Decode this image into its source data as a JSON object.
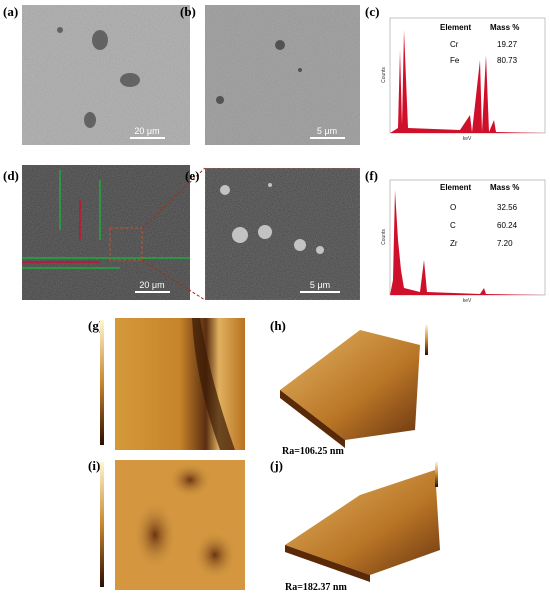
{
  "panels": {
    "a": {
      "label": "(a)",
      "scale_bar": "20 μm"
    },
    "b": {
      "label": "(b)",
      "scale_bar": "5 μm"
    },
    "c": {
      "label": "(c)",
      "y_axis": "Counts",
      "x_axis": "keV",
      "table": {
        "header": [
          "Element",
          "Mass %"
        ],
        "rows": [
          [
            "Cr",
            "19.27"
          ],
          [
            "Fe",
            "80.73"
          ]
        ]
      }
    },
    "d": {
      "label": "(d)",
      "scale_bar": "20 μm"
    },
    "e": {
      "label": "(e)",
      "scale_bar": "5 μm"
    },
    "f": {
      "label": "(f)",
      "y_axis": "Counts",
      "x_axis": "keV",
      "table": {
        "header": [
          "Element",
          "Mass %"
        ],
        "rows": [
          [
            "O",
            "32.56"
          ],
          [
            "C",
            "60.24"
          ],
          [
            "Zr",
            "7.20"
          ]
        ]
      }
    },
    "g": {
      "label": "(g)"
    },
    "h": {
      "label": "(h)",
      "roughness": "Ra=106.25 nm"
    },
    "i": {
      "label": "(i)"
    },
    "j": {
      "label": "(j)",
      "roughness": "Ra=182.37 nm"
    }
  }
}
